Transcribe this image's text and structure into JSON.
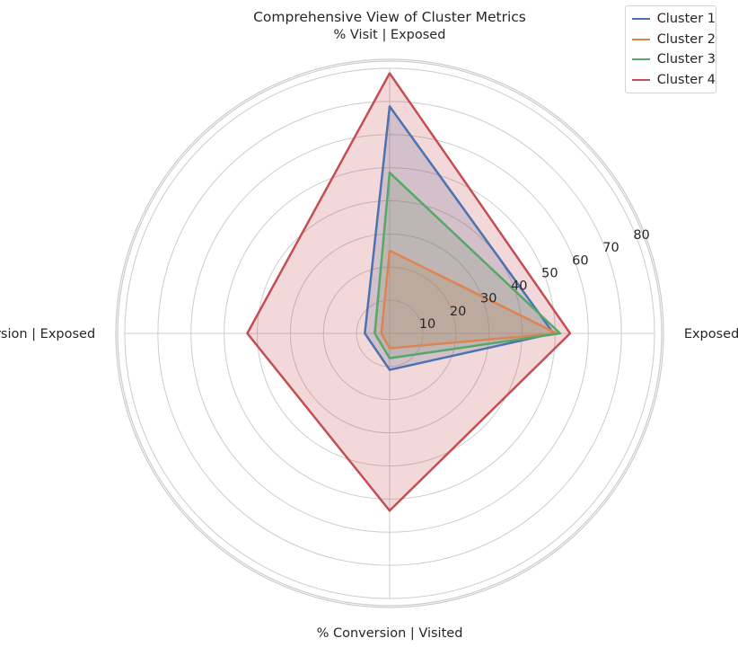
{
  "chart_data": {
    "type": "radar",
    "title": "Comprehensive View of Cluster Metrics",
    "axes": [
      "Exposed (%)",
      "% Visit | Exposed",
      "% Conversion | Exposed",
      "% Conversion | Visited"
    ],
    "rticks": [
      10,
      20,
      30,
      40,
      50,
      60,
      70,
      80
    ],
    "rlim": [
      0,
      80
    ],
    "grid": true,
    "legend_position": "top-right",
    "series": [
      {
        "name": "Cluster 1",
        "color": "#4c72b0",
        "values": [
          49.5,
          68.5,
          7.5,
          11
        ],
        "fill": true
      },
      {
        "name": "Cluster 2",
        "color": "#dd8452",
        "values": [
          50.5,
          25,
          2.5,
          4.5
        ],
        "fill": true
      },
      {
        "name": "Cluster 3",
        "color": "#55a868",
        "values": [
          51.5,
          48.5,
          4.5,
          7.5
        ],
        "fill": true
      },
      {
        "name": "Cluster 4",
        "color": "#c44e52",
        "values": [
          54.5,
          78.5,
          43,
          53.5
        ],
        "fill": true
      }
    ]
  }
}
